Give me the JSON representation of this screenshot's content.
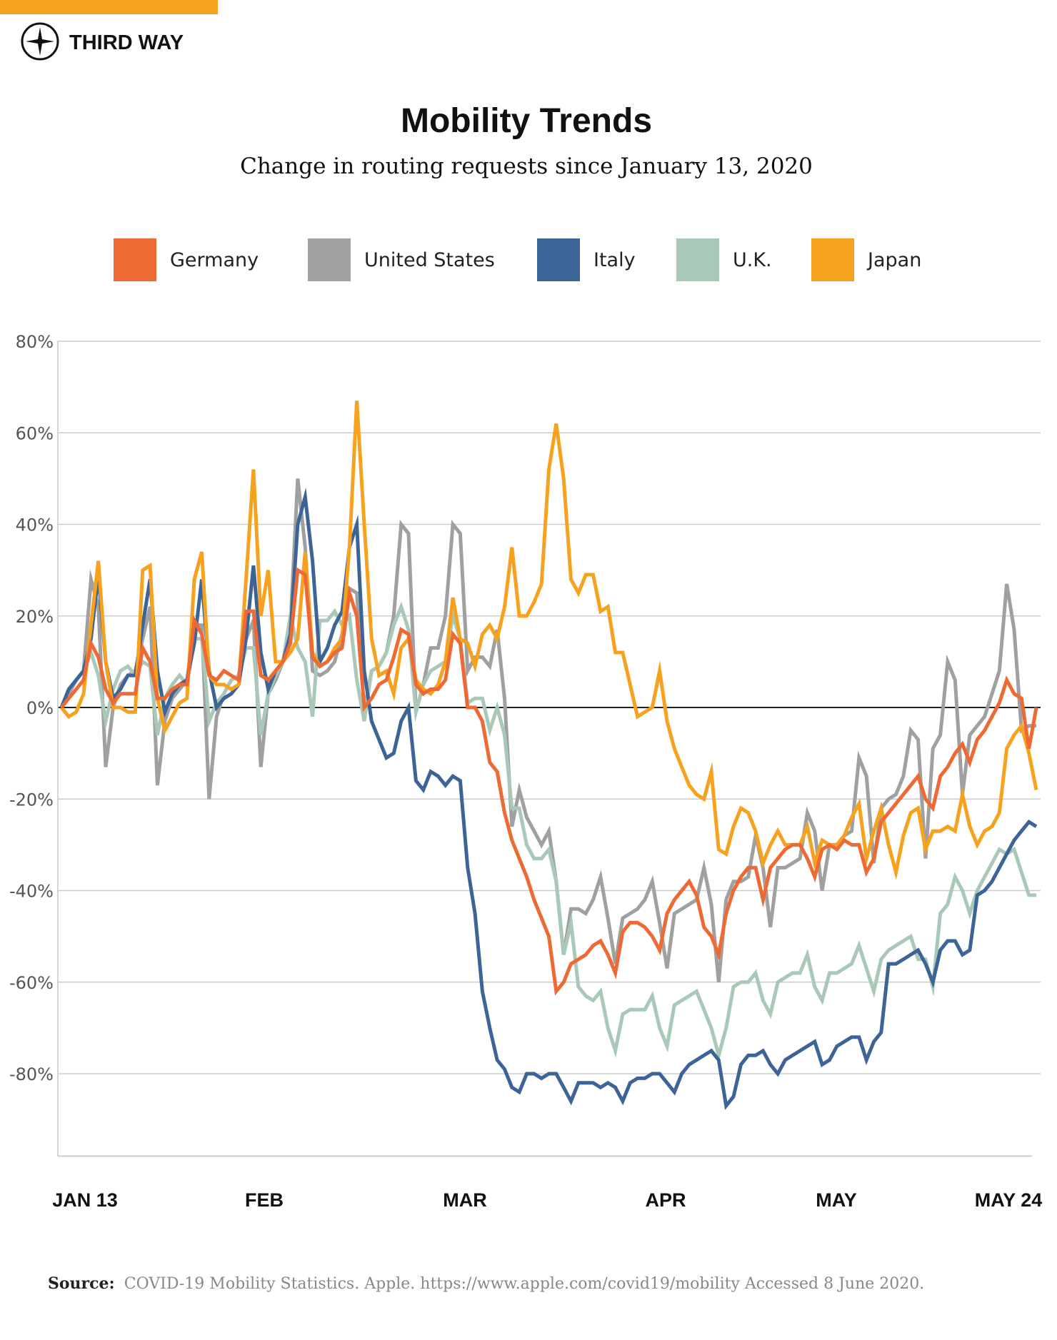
{
  "brand": {
    "name": "THIRD WAY",
    "accent": "#F7A21F",
    "icon": "compass-icon"
  },
  "chart_data": {
    "type": "line",
    "title": "Mobility Trends",
    "subtitle": "Change in routing requests since January 13, 2020",
    "xlabel": "",
    "ylabel": "",
    "x_start": "2020-01-13",
    "x_end": "2020-05-24",
    "x_interval": "daily",
    "x_tick_labels": [
      "JAN 13",
      "FEB",
      "MAR",
      "APR",
      "MAY",
      "MAY 24"
    ],
    "y_tick_labels": [
      "80%",
      "60%",
      "40%",
      "20%",
      "0%",
      "-20%",
      "-40%",
      "-60%",
      "-80%"
    ],
    "y_ticks": [
      80,
      60,
      40,
      20,
      0,
      -20,
      -40,
      -60,
      -80
    ],
    "ylim": [
      -98,
      80
    ],
    "grid": true,
    "legend_position": "top",
    "series": [
      {
        "name": "Germany",
        "color": "#EE6A35",
        "values": [
          0,
          2,
          4,
          6,
          14,
          11,
          4,
          1,
          3,
          3,
          3,
          13,
          10,
          2,
          2,
          4,
          5,
          5,
          19,
          16,
          7,
          6,
          8,
          7,
          6,
          21,
          21,
          7,
          6,
          8,
          10,
          14,
          30,
          29,
          11,
          9,
          10,
          12,
          13,
          25,
          20,
          0,
          2,
          5,
          6,
          11,
          17,
          16,
          5,
          3,
          4,
          4,
          6,
          16,
          14,
          0,
          0,
          -3,
          -12,
          -14,
          -23,
          -29,
          -33,
          -37,
          -42,
          -46,
          -50,
          -62,
          -60,
          -56,
          -55,
          -54,
          -52,
          -51,
          -54,
          -58,
          -49,
          -47,
          -47,
          -48,
          -50,
          -53,
          -45,
          -42,
          -40,
          -38,
          -41,
          -48,
          -50,
          -54,
          -45,
          -40,
          -37,
          -35,
          -35,
          -42,
          -35,
          -33,
          -31,
          -30,
          -30,
          -33,
          -37,
          -31,
          -30,
          -31,
          -29,
          -30,
          -30,
          -36,
          -33,
          -25,
          -23,
          -21,
          -19,
          -17,
          -15,
          -20,
          -22,
          -15,
          -13,
          -10,
          -8,
          -12,
          -7,
          -5,
          -2,
          1,
          6,
          3,
          2,
          -9,
          0
        ]
      },
      {
        "name": "United States",
        "color": "#A0A0A0",
        "values": [
          0,
          3,
          6,
          8,
          28,
          22,
          -13,
          0,
          5,
          7,
          8,
          15,
          22,
          -17,
          -3,
          2,
          4,
          6,
          18,
          18,
          -20,
          -2,
          3,
          6,
          7,
          15,
          19,
          -13,
          3,
          6,
          10,
          18,
          50,
          35,
          8,
          7,
          8,
          10,
          16,
          26,
          25,
          -1,
          8,
          9,
          12,
          20,
          40,
          38,
          -1,
          5,
          13,
          13,
          20,
          40,
          38,
          8,
          11,
          11,
          9,
          17,
          2,
          -26,
          -18,
          -24,
          -27,
          -30,
          -27,
          -38,
          -54,
          -44,
          -44,
          -45,
          -42,
          -37,
          -46,
          -56,
          -46,
          -45,
          -44,
          -42,
          -38,
          -47,
          -57,
          -45,
          -44,
          -43,
          -42,
          -35,
          -43,
          -60,
          -42,
          -38,
          -38,
          -37,
          -28,
          -35,
          -48,
          -35,
          -35,
          -34,
          -33,
          -23,
          -27,
          -40,
          -30,
          -30,
          -28,
          -27,
          -11,
          -15,
          -34,
          -22,
          -20,
          -19,
          -15,
          -5,
          -7,
          -33,
          -9,
          -6,
          10,
          6,
          -19,
          -6,
          -4,
          -2,
          3,
          8,
          27,
          17,
          -5,
          -4,
          -4
        ]
      },
      {
        "name": "Italy",
        "color": "#3D6496",
        "values": [
          0,
          4,
          6,
          8,
          15,
          29,
          10,
          2,
          4,
          7,
          7,
          18,
          28,
          8,
          -1,
          3,
          5,
          6,
          14,
          28,
          8,
          0,
          2,
          3,
          5,
          15,
          31,
          12,
          4,
          8,
          10,
          16,
          40,
          46,
          32,
          10,
          13,
          18,
          21,
          35,
          40,
          8,
          -3,
          -7,
          -11,
          -10,
          -3,
          0,
          -16,
          -18,
          -14,
          -15,
          -17,
          -15,
          -16,
          -35,
          -45,
          -62,
          -70,
          -77,
          -79,
          -83,
          -84,
          -80,
          -80,
          -81,
          -80,
          -80,
          -83,
          -86,
          -82,
          -82,
          -82,
          -83,
          -82,
          -83,
          -86,
          -82,
          -81,
          -81,
          -80,
          -80,
          -82,
          -84,
          -80,
          -78,
          -77,
          -76,
          -75,
          -77,
          -87,
          -85,
          -78,
          -76,
          -76,
          -75,
          -78,
          -80,
          -77,
          -76,
          -75,
          -74,
          -73,
          -78,
          -77,
          -74,
          -73,
          -72,
          -72,
          -77,
          -73,
          -71,
          -56,
          -56,
          -55,
          -54,
          -53,
          -56,
          -60,
          -53,
          -51,
          -51,
          -54,
          -53,
          -41,
          -40,
          -38,
          -35,
          -32,
          -29,
          -27,
          -25,
          -26
        ]
      },
      {
        "name": "U.K.",
        "color": "#A9C8B8",
        "values": [
          0,
          4,
          6,
          8,
          12,
          7,
          -3,
          4,
          8,
          9,
          7,
          10,
          9,
          -6,
          2,
          5,
          7,
          5,
          15,
          15,
          -3,
          1,
          3,
          6,
          7,
          13,
          13,
          -6,
          3,
          7,
          10,
          20,
          13,
          10,
          -2,
          19,
          19,
          21,
          18,
          20,
          6,
          -3,
          8,
          9,
          12,
          18,
          22,
          17,
          -1,
          5,
          8,
          9,
          10,
          20,
          15,
          1,
          2,
          2,
          -5,
          0,
          -6,
          -22,
          -22,
          -30,
          -33,
          -33,
          -31,
          -38,
          -54,
          -47,
          -61,
          -63,
          -64,
          -62,
          -70,
          -75,
          -67,
          -66,
          -66,
          -66,
          -63,
          -70,
          -74,
          -65,
          -64,
          -63,
          -62,
          -66,
          -70,
          -76,
          -70,
          -61,
          -60,
          -60,
          -58,
          -64,
          -67,
          -60,
          -59,
          -58,
          -58,
          -54,
          -61,
          -64,
          -58,
          -58,
          -57,
          -56,
          -52,
          -57,
          -62,
          -55,
          -53,
          -52,
          -51,
          -50,
          -55,
          -55,
          -61,
          -45,
          -43,
          -37,
          -40,
          -45,
          -40,
          -37,
          -34,
          -31,
          -32,
          -31,
          -36,
          -41,
          -41
        ]
      },
      {
        "name": "Japan",
        "color": "#F7A21F",
        "values": [
          0,
          -2,
          -1,
          3,
          18,
          32,
          10,
          0,
          0,
          -1,
          -1,
          30,
          31,
          2,
          -5,
          -2,
          1,
          2,
          28,
          34,
          7,
          5,
          5,
          4,
          5,
          28,
          52,
          20,
          30,
          10,
          10,
          12,
          15,
          34,
          12,
          9,
          10,
          13,
          15,
          35,
          67,
          40,
          15,
          7,
          8,
          3,
          13,
          15,
          6,
          4,
          3,
          5,
          10,
          24,
          15,
          14,
          9,
          16,
          18,
          15,
          22,
          35,
          20,
          20,
          23,
          27,
          52,
          62,
          50,
          28,
          25,
          29,
          29,
          21,
          22,
          12,
          12,
          5,
          -2,
          -1,
          0,
          8,
          -3,
          -9,
          -13,
          -17,
          -19,
          -20,
          -14,
          -31,
          -32,
          -26,
          -22,
          -23,
          -27,
          -34,
          -30,
          -27,
          -30,
          -30,
          -30,
          -26,
          -34,
          -29,
          -30,
          -30,
          -28,
          -24,
          -21,
          -33,
          -27,
          -22,
          -30,
          -36,
          -28,
          -23,
          -22,
          -31,
          -27,
          -27,
          -26,
          -27,
          -19,
          -26,
          -30,
          -27,
          -26,
          -23,
          -9,
          -6,
          -4,
          -10,
          -18
        ]
      }
    ]
  },
  "source": {
    "label": "Source:",
    "text": "COVID-19 Mobility Statistics. Apple. https://www.apple.com/covid19/mobility Accessed 8 June 2020."
  }
}
